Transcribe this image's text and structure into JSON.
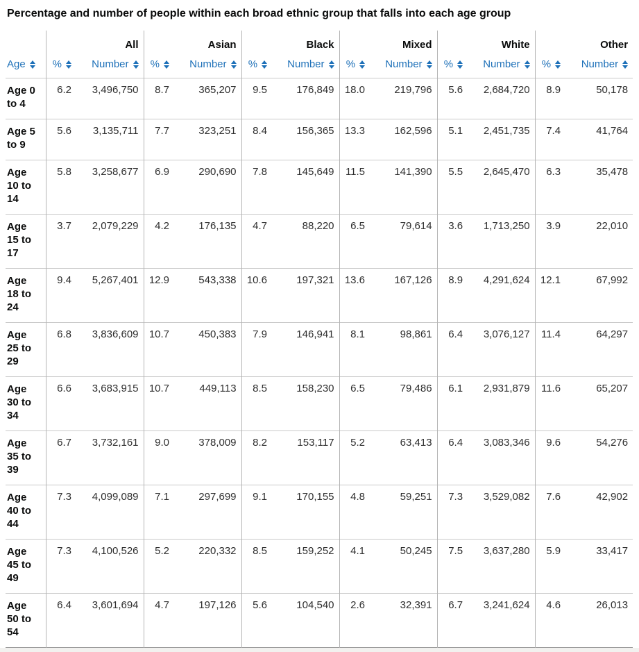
{
  "title": "Percentage and number of people within each broad ethnic group that falls into each age group",
  "accent_color": "#1d70b8",
  "table": {
    "age_header": "Age",
    "pct_header": "%",
    "number_header": "Number",
    "sort_icon": "up-down-arrows",
    "groups": [
      "All",
      "Asian",
      "Black",
      "Mixed",
      "White",
      "Other"
    ],
    "rows": [
      {
        "age": "Age 0 to 4",
        "values": [
          "6.2",
          "3,496,750",
          "8.7",
          "365,207",
          "9.5",
          "176,849",
          "18.0",
          "219,796",
          "5.6",
          "2,684,720",
          "8.9",
          "50,178"
        ]
      },
      {
        "age": "Age 5 to 9",
        "values": [
          "5.6",
          "3,135,711",
          "7.7",
          "323,251",
          "8.4",
          "156,365",
          "13.3",
          "162,596",
          "5.1",
          "2,451,735",
          "7.4",
          "41,764"
        ]
      },
      {
        "age": "Age 10 to 14",
        "values": [
          "5.8",
          "3,258,677",
          "6.9",
          "290,690",
          "7.8",
          "145,649",
          "11.5",
          "141,390",
          "5.5",
          "2,645,470",
          "6.3",
          "35,478"
        ]
      },
      {
        "age": "Age 15 to 17",
        "values": [
          "3.7",
          "2,079,229",
          "4.2",
          "176,135",
          "4.7",
          "88,220",
          "6.5",
          "79,614",
          "3.6",
          "1,713,250",
          "3.9",
          "22,010"
        ]
      },
      {
        "age": "Age 18 to 24",
        "values": [
          "9.4",
          "5,267,401",
          "12.9",
          "543,338",
          "10.6",
          "197,321",
          "13.6",
          "167,126",
          "8.9",
          "4,291,624",
          "12.1",
          "67,992"
        ]
      },
      {
        "age": "Age 25 to 29",
        "values": [
          "6.8",
          "3,836,609",
          "10.7",
          "450,383",
          "7.9",
          "146,941",
          "8.1",
          "98,861",
          "6.4",
          "3,076,127",
          "11.4",
          "64,297"
        ]
      },
      {
        "age": "Age 30 to 34",
        "values": [
          "6.6",
          "3,683,915",
          "10.7",
          "449,113",
          "8.5",
          "158,230",
          "6.5",
          "79,486",
          "6.1",
          "2,931,879",
          "11.6",
          "65,207"
        ]
      },
      {
        "age": "Age 35 to 39",
        "values": [
          "6.7",
          "3,732,161",
          "9.0",
          "378,009",
          "8.2",
          "153,117",
          "5.2",
          "63,413",
          "6.4",
          "3,083,346",
          "9.6",
          "54,276"
        ]
      },
      {
        "age": "Age 40 to 44",
        "values": [
          "7.3",
          "4,099,089",
          "7.1",
          "297,699",
          "9.1",
          "170,155",
          "4.8",
          "59,251",
          "7.3",
          "3,529,082",
          "7.6",
          "42,902"
        ]
      },
      {
        "age": "Age 45 to 49",
        "values": [
          "7.3",
          "4,100,526",
          "5.2",
          "220,332",
          "8.5",
          "159,252",
          "4.1",
          "50,245",
          "7.5",
          "3,637,280",
          "5.9",
          "33,417"
        ]
      },
      {
        "age": "Age 50 to 54",
        "values": [
          "6.4",
          "3,601,694",
          "4.7",
          "197,126",
          "5.6",
          "104,540",
          "2.6",
          "32,391",
          "6.7",
          "3,241,624",
          "4.6",
          "26,013"
        ]
      }
    ]
  }
}
